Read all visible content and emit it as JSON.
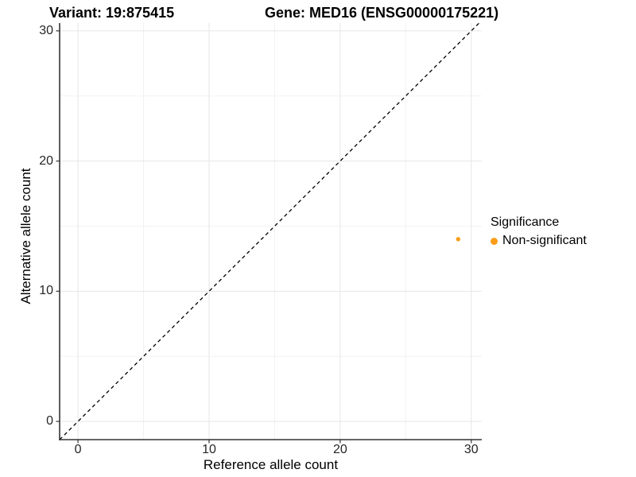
{
  "chart_data": {
    "type": "scatter",
    "title_variant": "Variant: 19:875415",
    "title_gene": "Gene: MED16 (ENSG00000175221)",
    "xlabel": "Reference allele count",
    "ylabel": "Alternative allele count",
    "xlim": [
      -1.4,
      30.8
    ],
    "ylim": [
      -1.4,
      30.6
    ],
    "xticks": [
      0,
      10,
      20,
      30
    ],
    "yticks": [
      0,
      10,
      20,
      30
    ],
    "minor_xticks": [
      5,
      15,
      25
    ],
    "minor_yticks": [
      5,
      15,
      25
    ],
    "grid": "major+minor",
    "points": [
      {
        "x": 29,
        "y": 14,
        "series": "Non-significant"
      }
    ],
    "identity_line": {
      "slope": 1,
      "intercept": 0,
      "style": "dashed",
      "color": "#000000"
    },
    "legend": {
      "title": "Significance",
      "position": "right",
      "entries": [
        {
          "label": "Non-significant",
          "color": "#FB9D18"
        }
      ]
    },
    "colors": {
      "axis": "#333333",
      "tick_text": "#262626",
      "grid_major": "#E6E6E6",
      "grid_minor": "#F2F2F2",
      "background": "#FFFFFF"
    }
  }
}
